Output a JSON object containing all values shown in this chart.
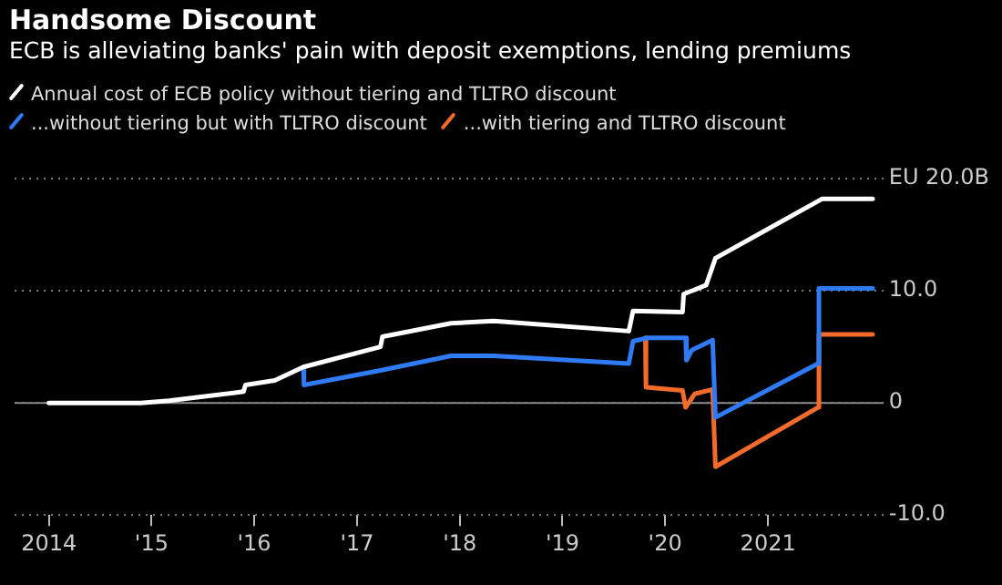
{
  "chart_data": {
    "type": "line",
    "title": "Handsome Discount",
    "subtitle": "ECB is alleviating banks' pain with deposit exemptions, lending premiums",
    "legend": "top left",
    "grid": "y",
    "marker": "none",
    "line_style": "solid",
    "xlim": [
      "2013-09-01",
      "2022-02-15"
    ],
    "xticks": [
      {
        "value": "2014-01-01",
        "label": "2014"
      },
      {
        "value": "2015-01-01",
        "label": "'15"
      },
      {
        "value": "2016-01-01",
        "label": "'16"
      },
      {
        "value": "2017-01-01",
        "label": "'17"
      },
      {
        "value": "2018-01-01",
        "label": "'18"
      },
      {
        "value": "2019-01-01",
        "label": "'19"
      },
      {
        "value": "2020-01-01",
        "label": "'20"
      },
      {
        "value": "2021-01-01",
        "label": "2021"
      }
    ],
    "ylim": [
      -10,
      20
    ],
    "yticks": [
      {
        "value": -10,
        "label": "-10.0"
      },
      0,
      {
        "value": 10,
        "label": "10.0"
      },
      {
        "value": 20,
        "label": "EU 20.0B"
      }
    ],
    "ref_lines": [
      {
        "axis": "y",
        "value": 0,
        "color": "#8a8a8a",
        "line_style": "solid"
      }
    ],
    "series": [
      {
        "name": "Annual cost of ECB policy without tiering and TLTRO discount",
        "color": "#ffffff",
        "x": [
          "2014-01-01",
          "2014-11-24",
          "2015-03-04",
          "2015-11-24",
          "2015-12-01",
          "2016-03-14",
          "2016-06-24",
          "2017-03-25",
          "2017-04-01",
          "2017-12-01",
          "2018-05-01",
          "2019-08-25",
          "2019-09-09",
          "2020-03-03",
          "2020-03-07",
          "2020-05-26",
          "2020-06-28",
          "2021-07-13",
          "2022-01-08"
        ],
        "values": [
          0,
          0,
          0.2,
          1.0,
          1.6,
          2.0,
          3.2,
          5.0,
          5.9,
          7.1,
          7.3,
          6.4,
          8.2,
          8.1,
          9.7,
          10.5,
          12.9,
          18.2,
          18.2
        ]
      },
      {
        "name": "...without tiering but with TLTRO discount",
        "color": "#2f7bf5",
        "x": [
          "2016-06-24",
          "2016-06-26",
          "2017-03-25",
          "2017-12-01",
          "2018-05-01",
          "2019-08-25",
          "2019-09-09",
          "2019-10-30",
          "2020-03-14",
          "2020-03-17",
          "2020-04-05",
          "2020-06-18",
          "2020-06-28",
          "2021-06-28",
          "2021-07-01",
          "2022-01-08"
        ],
        "values": [
          3.2,
          1.6,
          2.9,
          4.2,
          4.2,
          3.5,
          5.5,
          5.8,
          5.8,
          3.8,
          4.7,
          5.6,
          -1.3,
          3.5,
          10.2,
          10.2
        ]
      },
      {
        "name": "...with tiering and TLTRO discount",
        "color": "#f26b2a",
        "x": [
          "2019-10-23",
          "2019-10-25",
          "2020-03-03",
          "2020-03-14",
          "2020-04-15",
          "2020-06-18",
          "2020-06-28",
          "2021-06-28",
          "2021-07-01",
          "2022-01-08"
        ],
        "values": [
          5.8,
          1.4,
          1.1,
          -0.4,
          0.8,
          1.2,
          -5.7,
          -0.4,
          6.1,
          6.1
        ]
      }
    ]
  }
}
